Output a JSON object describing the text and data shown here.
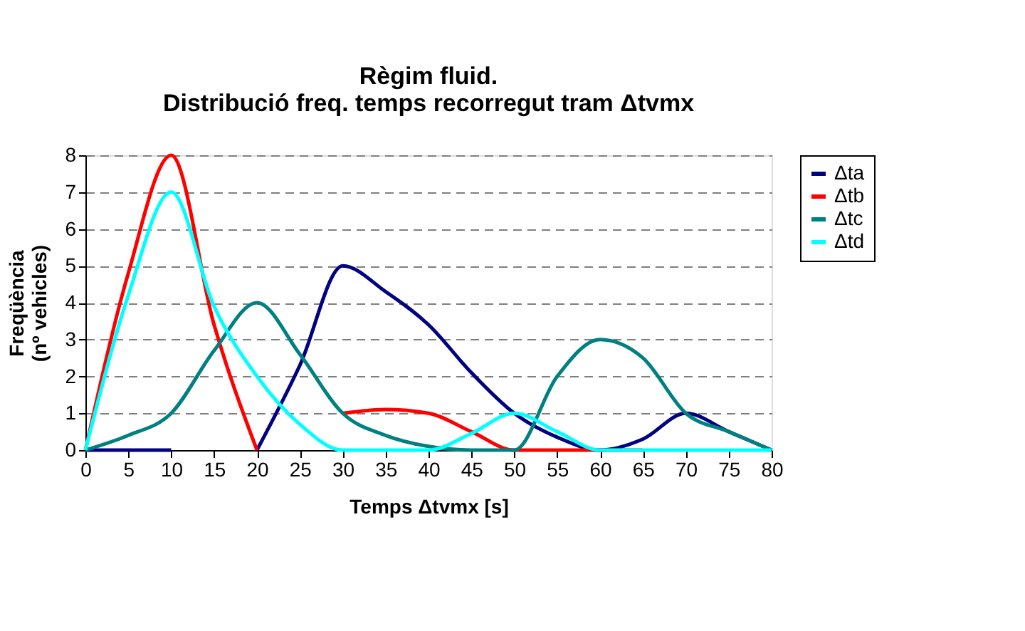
{
  "chart_data": {
    "type": "line",
    "title": [
      "Règim fluid.",
      "Distribució freq. temps recorregut tram Δtvmx"
    ],
    "xlabel": "Temps Δtvmx  [s]",
    "ylabel": [
      "Freqüència",
      "(nº vehicles)"
    ],
    "x": [
      0,
      5,
      10,
      15,
      20,
      25,
      30,
      35,
      40,
      45,
      50,
      55,
      60,
      65,
      70,
      75,
      80
    ],
    "series": [
      {
        "name": "Δta",
        "color": "#000080",
        "values": [
          0,
          0,
          0,
          null,
          0,
          2.3,
          5,
          4.3,
          3.4,
          2.1,
          1,
          0.35,
          0,
          0.3,
          1,
          0.5,
          0
        ]
      },
      {
        "name": "Δtb",
        "color": "#ff0000",
        "values": [
          0,
          4.8,
          8,
          3.4,
          0,
          null,
          1,
          1.1,
          1,
          0.5,
          0,
          0,
          0,
          0,
          null,
          null,
          null
        ]
      },
      {
        "name": "Δtc",
        "color": "#008080",
        "values": [
          0,
          0.4,
          1,
          2.7,
          4,
          2.6,
          1,
          0.4,
          0.1,
          0,
          0,
          2,
          3,
          2.5,
          1,
          0.5,
          0
        ]
      },
      {
        "name": "Δtd",
        "color": "#00ffff",
        "values": [
          0,
          4.2,
          7,
          3.9,
          2,
          0.7,
          0,
          0,
          0,
          0.45,
          1,
          0.5,
          0,
          0,
          0,
          0,
          0
        ]
      }
    ],
    "xlim": [
      0,
      80
    ],
    "xticks": [
      0,
      5,
      10,
      15,
      20,
      25,
      30,
      35,
      40,
      45,
      50,
      55,
      60,
      65,
      70,
      75,
      80
    ],
    "ylim": [
      0,
      8
    ],
    "yticks": [
      0,
      1,
      2,
      3,
      4,
      5,
      6,
      7,
      8
    ],
    "grid": "y",
    "legend": "right",
    "marker": "none",
    "line_style": "solid"
  }
}
